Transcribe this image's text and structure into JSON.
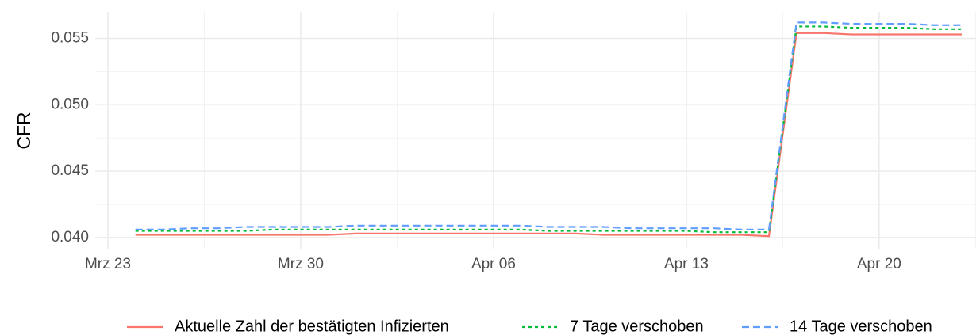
{
  "chart_data": {
    "type": "line",
    "ylabel": "CFR",
    "x": [
      "03-24",
      "03-25",
      "03-26",
      "03-27",
      "03-28",
      "03-29",
      "03-30",
      "03-31",
      "04-01",
      "04-02",
      "04-03",
      "04-04",
      "04-05",
      "04-06",
      "04-07",
      "04-08",
      "04-09",
      "04-10",
      "04-11",
      "04-12",
      "04-13",
      "04-14",
      "04-15",
      "04-16",
      "04-17",
      "04-18",
      "04-19",
      "04-20",
      "04-21",
      "04-22",
      "04-23"
    ],
    "series": [
      {
        "name": "Aktuelle Zahl der bestätigten Infizierten",
        "color": "#F8766D",
        "dash": "none",
        "values": [
          0.0402,
          0.0402,
          0.0402,
          0.0402,
          0.0402,
          0.0402,
          0.0402,
          0.0402,
          0.0403,
          0.0403,
          0.0403,
          0.0403,
          0.0403,
          0.0403,
          0.0403,
          0.0403,
          0.0403,
          0.0402,
          0.0402,
          0.0402,
          0.0402,
          0.0402,
          0.0402,
          0.0401,
          0.0554,
          0.0554,
          0.0553,
          0.0553,
          0.0553,
          0.0553,
          0.0553
        ]
      },
      {
        "name": "7 Tage verschoben",
        "color": "#00BA38",
        "dash": "4,4",
        "values": [
          0.0405,
          0.0405,
          0.0405,
          0.0405,
          0.0405,
          0.0406,
          0.0406,
          0.0406,
          0.0406,
          0.0406,
          0.0406,
          0.0406,
          0.0406,
          0.0406,
          0.0406,
          0.0405,
          0.0405,
          0.0405,
          0.0405,
          0.0405,
          0.0405,
          0.0404,
          0.0404,
          0.0404,
          0.0559,
          0.0559,
          0.0558,
          0.0558,
          0.0558,
          0.0557,
          0.0557
        ]
      },
      {
        "name": "14 Tage verschoben",
        "color": "#619CFF",
        "dash": "9,5",
        "values": [
          0.0406,
          0.0406,
          0.0407,
          0.0407,
          0.0408,
          0.0408,
          0.0408,
          0.0408,
          0.0409,
          0.0409,
          0.0409,
          0.0409,
          0.0409,
          0.0409,
          0.0409,
          0.0408,
          0.0408,
          0.0408,
          0.0407,
          0.0407,
          0.0407,
          0.0407,
          0.0406,
          0.0406,
          0.0562,
          0.0562,
          0.0561,
          0.0561,
          0.0561,
          0.056,
          0.056
        ]
      }
    ],
    "xlim": [
      "03-23",
      "04-23"
    ],
    "xticks": [
      {
        "value": "03-23",
        "label": "Mrz 23"
      },
      {
        "value": "03-30",
        "label": "Mrz 30"
      },
      {
        "value": "04-06",
        "label": "Apr 06"
      },
      {
        "value": "04-13",
        "label": "Apr 13"
      },
      {
        "value": "04-20",
        "label": "Apr 20"
      }
    ],
    "ylim": [
      0.0391,
      0.057
    ],
    "yticks": [
      {
        "value": 0.04,
        "label": "0.040"
      },
      {
        "value": 0.045,
        "label": "0.045"
      },
      {
        "value": 0.05,
        "label": "0.050"
      },
      {
        "value": 0.055,
        "label": "0.055"
      }
    ],
    "grid": true,
    "legend": "bottom"
  }
}
